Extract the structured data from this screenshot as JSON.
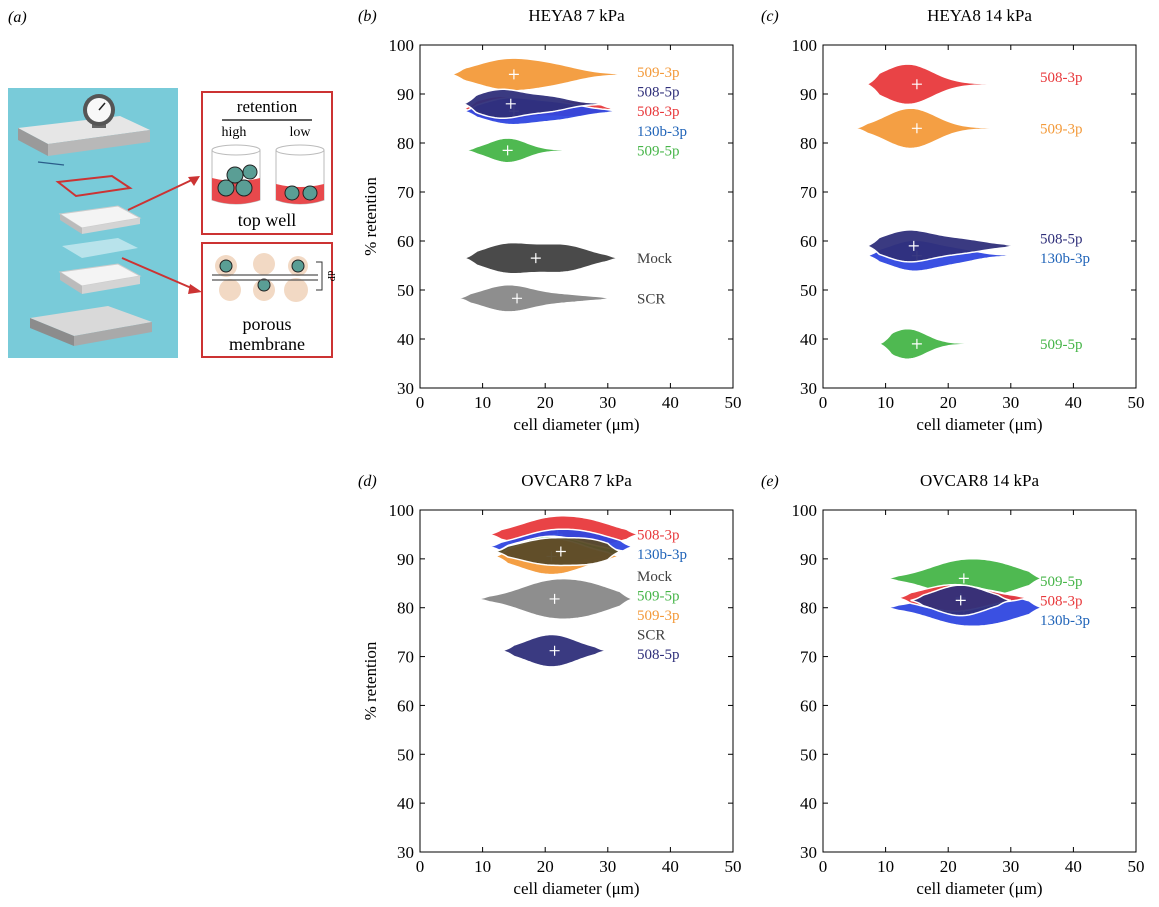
{
  "figure": {
    "panel_a": {
      "label": "(a)",
      "retention_heading": "retention",
      "high_label": "high",
      "low_label": "low",
      "top_well_label": "top well",
      "porous_label": "porous",
      "membrane_label": "membrane",
      "dp_label": "dP",
      "colors": {
        "background": "#79cbd9",
        "accent": "#cc3333",
        "cell": "#5a9e95",
        "cell_light": "#f2d9c4"
      }
    }
  },
  "chart_data": [
    {
      "panel": "(b)",
      "type": "violin",
      "title": "HEYA8 7 kPa",
      "xlabel": "cell diameter (μm)",
      "ylabel": "% retention",
      "xlim": [
        0,
        50
      ],
      "ylim": [
        30,
        100
      ],
      "xticks": [
        0,
        10,
        20,
        30,
        40,
        50
      ],
      "yticks": [
        30,
        40,
        50,
        60,
        70,
        80,
        90,
        100
      ],
      "series": [
        {
          "name": "509-3p",
          "color": "#f39a3a",
          "retention": 94,
          "mean_diameter": 15,
          "range": [
            5,
            33
          ],
          "width": 3,
          "bulges": [
            [
              14,
              5,
              1.0
            ],
            [
              22,
              4,
              0.4
            ]
          ]
        },
        {
          "name": "508-3p",
          "color": "#e8393c",
          "retention": 87,
          "mean_diameter": 15,
          "range": [
            7,
            31
          ],
          "width": 2.4,
          "bulges": [
            [
              13,
              4,
              1.0
            ],
            [
              24,
              4,
              0.6
            ]
          ]
        },
        {
          "name": "130b-3p",
          "color": "#2f47e0",
          "retention": 86.5,
          "mean_diameter": 15,
          "range": [
            7,
            32
          ],
          "width": 2.4,
          "bulges": [
            [
              14,
              4,
              1.0
            ],
            [
              22,
              4,
              0.6
            ]
          ]
        },
        {
          "name": "508-5p",
          "color": "#2f2f7a",
          "retention": 88,
          "mean_diameter": 14.5,
          "range": [
            7,
            30
          ],
          "width": 2.8,
          "bulges": [
            [
              13,
              4,
              1.0
            ],
            [
              21,
              3,
              0.4
            ]
          ]
        },
        {
          "name": "509-5p",
          "color": "#46b548",
          "retention": 78.5,
          "mean_diameter": 14,
          "range": [
            7,
            28
          ],
          "width": 2.4,
          "bulges": [
            [
              14,
              3,
              1.0
            ]
          ]
        },
        {
          "name": "Mock",
          "color": "#404040",
          "retention": 56.5,
          "mean_diameter": 18.5,
          "range": [
            7,
            32
          ],
          "width": 2.8,
          "bulges": [
            [
              14,
              4,
              1.0
            ],
            [
              23,
              4,
              0.9
            ]
          ]
        },
        {
          "name": "SCR",
          "color": "#888888",
          "retention": 48.3,
          "mean_diameter": 15.5,
          "range": [
            6,
            31
          ],
          "width": 2.6,
          "bulges": [
            [
              14,
              4,
              1.0
            ],
            [
              23,
              4,
              0.25
            ]
          ]
        }
      ],
      "labels": [
        {
          "text": "509-3p",
          "color": "#f39a3a",
          "y": 94.5
        },
        {
          "text": "508-5p",
          "color": "#2f2f7a",
          "y": 90.5
        },
        {
          "text": "508-3p",
          "color": "#e8393c",
          "y": 86.5
        },
        {
          "text": "130b-3p",
          "color": "#1f63b8",
          "y": 82.5
        },
        {
          "text": "509-5p",
          "color": "#46b548",
          "y": 78.5
        },
        {
          "text": "Mock",
          "color": "#404040",
          "y": 56.5
        },
        {
          "text": "SCR",
          "color": "#404040",
          "y": 48.3
        }
      ]
    },
    {
      "panel": "(c)",
      "type": "violin",
      "title": "HEYA8 14 kPa",
      "xlabel": "cell diameter (μm)",
      "ylabel": "",
      "xlim": [
        0,
        50
      ],
      "ylim": [
        30,
        100
      ],
      "xticks": [
        0,
        10,
        20,
        30,
        40,
        50
      ],
      "yticks": [
        30,
        40,
        50,
        60,
        70,
        80,
        90,
        100
      ],
      "series": [
        {
          "name": "508-3p",
          "color": "#e8393c",
          "retention": 92,
          "mean_diameter": 15,
          "range": [
            7,
            31
          ],
          "width": 4,
          "bulges": [
            [
              13.5,
              4,
              1.0
            ]
          ]
        },
        {
          "name": "509-3p",
          "color": "#f39a3a",
          "retention": 83,
          "mean_diameter": 15,
          "range": [
            5,
            31
          ],
          "width": 4,
          "bulges": [
            [
              14,
              4,
              1.0
            ]
          ]
        },
        {
          "name": "130b-3p",
          "color": "#2f47e0",
          "retention": 57,
          "mean_diameter": 15,
          "range": [
            7,
            31
          ],
          "width": 3,
          "bulges": [
            [
              14.5,
              4,
              1.0
            ],
            [
              22,
              3,
              0.3
            ]
          ]
        },
        {
          "name": "508-5p",
          "color": "#2f2f7a",
          "retention": 59,
          "mean_diameter": 14.5,
          "range": [
            7,
            31
          ],
          "width": 3,
          "bulges": [
            [
              13.5,
              4,
              1.0
            ],
            [
              22,
              4,
              0.4
            ]
          ]
        },
        {
          "name": "509-5p",
          "color": "#46b548",
          "retention": 39,
          "mean_diameter": 15,
          "range": [
            9,
            28
          ],
          "width": 3,
          "bulges": [
            [
              13.5,
              3,
              1.0
            ]
          ]
        }
      ],
      "labels": [
        {
          "text": "508-3p",
          "color": "#e8393c",
          "y": 93.5
        },
        {
          "text": "509-3p",
          "color": "#f39a3a",
          "y": 83
        },
        {
          "text": "508-5p",
          "color": "#2f2f7a",
          "y": 60.5
        },
        {
          "text": "130b-3p",
          "color": "#1f63b8",
          "y": 56.5
        },
        {
          "text": "509-5p",
          "color": "#46b548",
          "y": 39
        }
      ]
    },
    {
      "panel": "(d)",
      "type": "violin",
      "title": "OVCAR8 7 kPa",
      "xlabel": "cell diameter (μm)",
      "ylabel": "% retention",
      "xlim": [
        0,
        50
      ],
      "ylim": [
        30,
        100
      ],
      "xticks": [
        0,
        10,
        20,
        30,
        40,
        50
      ],
      "yticks": [
        30,
        40,
        50,
        60,
        70,
        80,
        90,
        100
      ],
      "series": [
        {
          "name": "508-3p",
          "color": "#e8393c",
          "retention": 95,
          "mean_diameter": 22,
          "range": [
            11,
            35
          ],
          "width": 3.2,
          "bulges": [
            [
              21,
              5,
              1.0
            ],
            [
              28,
              4,
              0.5
            ]
          ]
        },
        {
          "name": "130b-3p",
          "color": "#2f47e0",
          "retention": 92.5,
          "mean_diameter": 22,
          "range": [
            11,
            34
          ],
          "width": 3,
          "bulges": [
            [
              21,
              5,
              1.0
            ],
            [
              28,
              4,
              0.5
            ]
          ]
        },
        {
          "name": "509-5p",
          "color": "#46b548",
          "retention": 91.5,
          "mean_diameter": 22,
          "range": [
            12,
            33
          ],
          "width": 3,
          "bulges": [
            [
              21,
              5,
              1.0
            ]
          ]
        },
        {
          "name": "509-3p",
          "color": "#f39a3a",
          "retention": 90.5,
          "mean_diameter": 21,
          "range": [
            12,
            32
          ],
          "width": 3.6,
          "bulges": [
            [
              21,
              5,
              1.0
            ]
          ]
        },
        {
          "name": "Mock",
          "color": "#5a4a28",
          "retention": 91.5,
          "mean_diameter": 22.5,
          "range": [
            12,
            32
          ],
          "width": 2.6,
          "bulges": [
            [
              21,
              5,
              1.0
            ],
            [
              28,
              3,
              0.5
            ]
          ]
        },
        {
          "name": "SCR",
          "color": "#888888",
          "retention": 81.8,
          "mean_diameter": 21.5,
          "range": [
            9,
            34
          ],
          "width": 3.5,
          "bulges": [
            [
              21,
              5,
              1.0
            ],
            [
              28,
              4,
              0.5
            ]
          ]
        },
        {
          "name": "508-5p",
          "color": "#2f2f7a",
          "retention": 71.2,
          "mean_diameter": 21.5,
          "range": [
            13,
            30
          ],
          "width": 3.2,
          "bulges": [
            [
              21,
              4,
              1.0
            ]
          ]
        }
      ],
      "labels": [
        {
          "text": "508-3p",
          "color": "#e8393c",
          "y": 95
        },
        {
          "text": "130b-3p",
          "color": "#1f63b8",
          "y": 91
        },
        {
          "text": "Mock",
          "color": "#404040",
          "y": 86.5
        },
        {
          "text": "509-5p",
          "color": "#46b548",
          "y": 82.5
        },
        {
          "text": "509-3p",
          "color": "#f39a3a",
          "y": 78.5
        },
        {
          "text": "SCR",
          "color": "#404040",
          "y": 74.5
        },
        {
          "text": "508-5p",
          "color": "#2f2f7a",
          "y": 70.5
        }
      ]
    },
    {
      "panel": "(e)",
      "type": "violin",
      "title": "OVCAR8 14 kPa",
      "xlabel": "cell diameter (μm)",
      "ylabel": "",
      "xlim": [
        0,
        50
      ],
      "ylim": [
        30,
        100
      ],
      "xticks": [
        0,
        10,
        20,
        30,
        40,
        50
      ],
      "yticks": [
        30,
        40,
        50,
        60,
        70,
        80,
        90,
        100
      ],
      "series": [
        {
          "name": "509-5p",
          "color": "#46b548",
          "retention": 86,
          "mean_diameter": 22.5,
          "range": [
            10,
            35
          ],
          "width": 3.4,
          "bulges": [
            [
              22,
              5,
              1.0
            ],
            [
              29,
              4,
              0.5
            ]
          ]
        },
        {
          "name": "130b-3p",
          "color": "#2f47e0",
          "retention": 80,
          "mean_diameter": 22.5,
          "range": [
            10,
            35
          ],
          "width": 3.2,
          "bulges": [
            [
              22,
              5,
              1.0
            ],
            [
              29,
              4,
              0.5
            ]
          ]
        },
        {
          "name": "508-3p",
          "color": "#e8393c",
          "retention": 82,
          "mean_diameter": 22,
          "range": [
            12,
            33
          ],
          "width": 2.6,
          "bulges": [
            [
              21,
              5,
              1.0
            ]
          ]
        },
        {
          "name": "508-5p",
          "color": "#2f2f7a",
          "retention": 81.5,
          "mean_diameter": 22,
          "range": [
            14,
            30
          ],
          "width": 3,
          "bulges": [
            [
              22,
              4,
              1.0
            ]
          ]
        }
      ],
      "labels": [
        {
          "text": "509-5p",
          "color": "#46b548",
          "y": 85.5
        },
        {
          "text": "508-3p",
          "color": "#e8393c",
          "y": 81.5
        },
        {
          "text": "130b-3p",
          "color": "#1f63b8",
          "y": 77.5
        }
      ]
    }
  ]
}
